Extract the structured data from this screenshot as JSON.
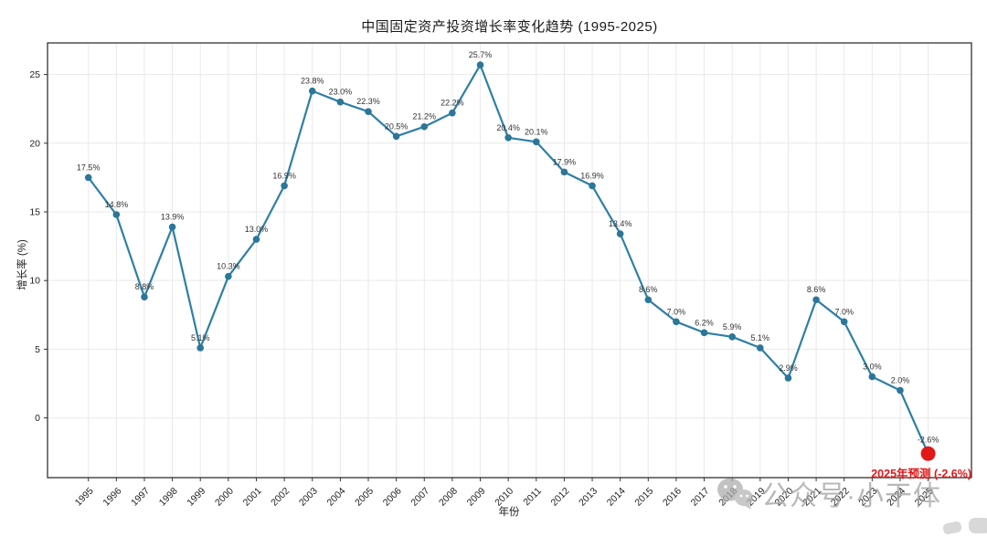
{
  "chart_data": {
    "type": "line",
    "title": "中国固定资产投资增长率变化趋势 (1995-2025)",
    "xlabel": "年份",
    "ylabel": "增长率 (%)",
    "x": [
      1995,
      1996,
      1997,
      1998,
      1999,
      2000,
      2001,
      2002,
      2003,
      2004,
      2005,
      2006,
      2007,
      2008,
      2009,
      2010,
      2011,
      2012,
      2013,
      2014,
      2015,
      2016,
      2017,
      2018,
      2019,
      2020,
      2021,
      2022,
      2023,
      2024,
      2025
    ],
    "values": [
      17.5,
      14.8,
      8.8,
      13.9,
      5.1,
      10.3,
      13.0,
      16.9,
      23.8,
      23.0,
      22.3,
      20.5,
      21.2,
      22.2,
      25.7,
      20.4,
      20.1,
      17.9,
      16.9,
      13.4,
      8.6,
      7.0,
      6.2,
      5.9,
      5.1,
      2.9,
      8.6,
      7.0,
      3.0,
      2.0,
      -2.6
    ],
    "point_labels": [
      "17.5%",
      "14.8%",
      "8.8%",
      "13.9%",
      "5.1%",
      "10.3%",
      "13.0%",
      "16.9%",
      "23.8%",
      "23.0%",
      "22.3%",
      "20.5%",
      "21.2%",
      "22.2%",
      "25.7%",
      "20.4%",
      "20.1%",
      "17.9%",
      "16.9%",
      "13.4%",
      "8.6%",
      "7.0%",
      "6.2%",
      "5.9%",
      "5.1%",
      "2.9%",
      "8.6%",
      "7.0%",
      "3.0%",
      "2.0%",
      "-2.6%"
    ],
    "yticks": [
      0,
      5,
      10,
      15,
      20,
      25
    ],
    "ylim": [
      -4.35,
      27.3
    ],
    "grid": true,
    "legend": "none",
    "line_color": "#2e7fa6",
    "marker_color": "#2b7699",
    "prediction": {
      "year": 2025,
      "value": -2.6,
      "label": "2025年预测 (-2.6%)",
      "point_label": "-2.6%",
      "color": "#e01818"
    }
  },
  "watermark": {
    "text": "公众号·小干体",
    "icon": "wechat-icon",
    "color": "#a8a8a8"
  }
}
